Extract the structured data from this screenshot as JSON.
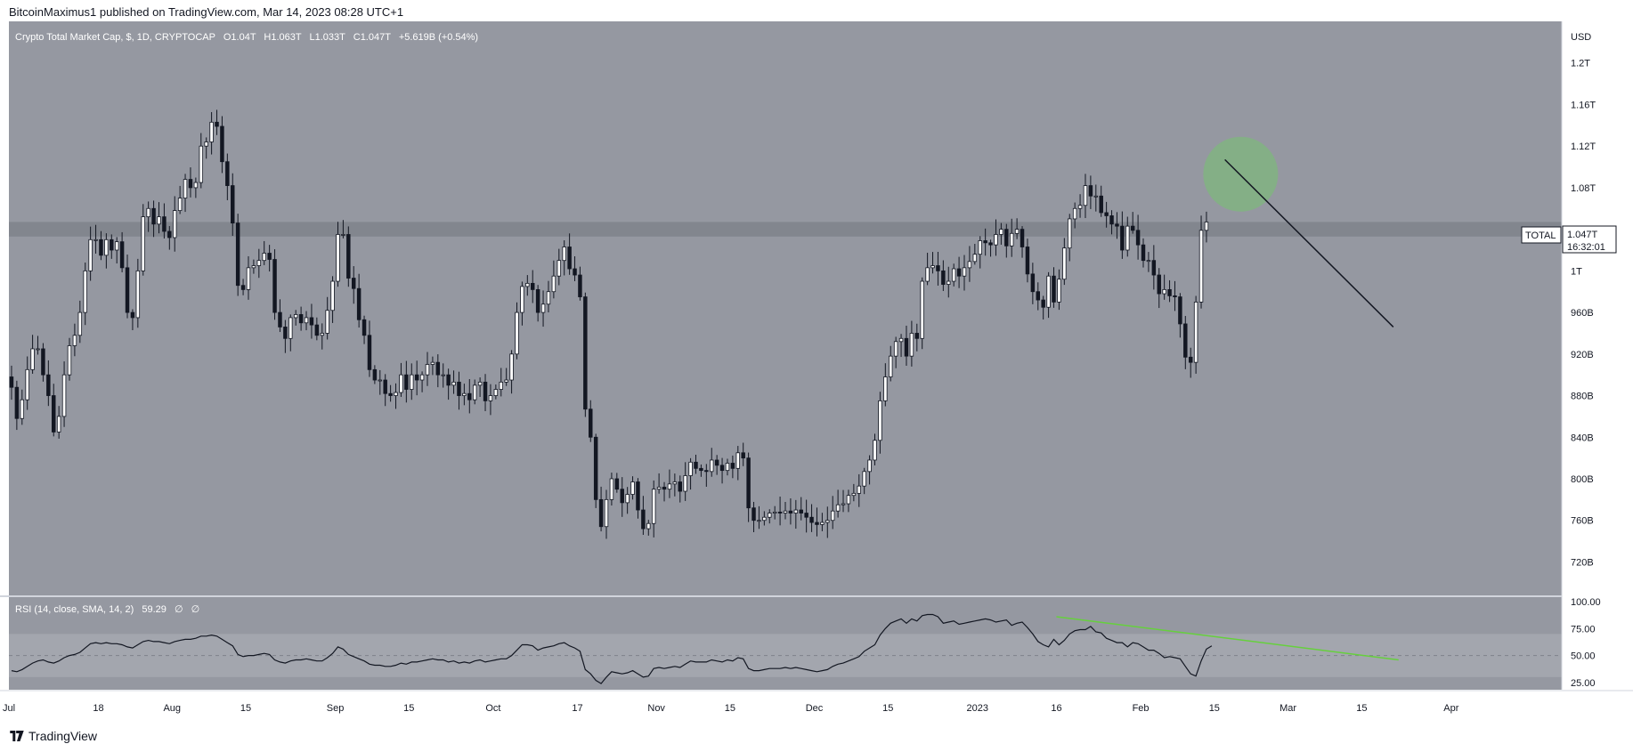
{
  "header": {
    "publisher_line": "BitcoinMaximus1 published on TradingView.com, Mar 14, 2023 08:28 UTC+1"
  },
  "footer": {
    "brand": "TradingView",
    "logo_icon": "tradingview-logo-icon"
  },
  "legend": {
    "symbol": "Crypto Total Market Cap, $, 1D, CRYPTOCAP",
    "o_label": "O",
    "o_value": "1.04T",
    "h_label": "H",
    "h_value": "1.063T",
    "l_label": "L",
    "l_value": "1.033T",
    "c_label": "C",
    "c_value": "1.047T",
    "change": "+5.619B (+0.54%)"
  },
  "price_tag": {
    "name": "TOTAL",
    "value": "1.047T",
    "countdown": "16:32:01"
  },
  "rsi_legend": {
    "label": "RSI (14, close, SMA, 14, 2)",
    "value": "59.29",
    "na1": "∅",
    "na2": "∅"
  },
  "colors": {
    "panel_bg": "#9598a1",
    "band": "#7f828b",
    "rsi_band": "#a3a6ae",
    "up_body": "#ffffff",
    "down_body": "#131722",
    "wick": "#131722",
    "highlight_circle": "#7fb77e",
    "trendline": "#131722",
    "rsi_line": "#131722",
    "rsi_divergence": "#66d03d",
    "axis_text": "#131722"
  },
  "chart_data": {
    "type": "candlestick",
    "title": "Crypto Total Market Cap, $, 1D, CRYPTOCAP",
    "currency": "USD",
    "price_ticks": [
      "1.2T",
      "1.16T",
      "1.12T",
      "1.08T",
      "1T",
      "960B",
      "920B",
      "880B",
      "840B",
      "800B",
      "760B",
      "720B"
    ],
    "price_tick_values": [
      1200,
      1160,
      1120,
      1080,
      1000,
      960,
      920,
      880,
      840,
      800,
      760,
      720
    ],
    "price_unit": "B",
    "ylim": [
      687,
      1240
    ],
    "date_range": [
      "2022-07-01",
      "2023-04-22"
    ],
    "x_labels": [
      {
        "label": "Jul",
        "date": "2022-07-01"
      },
      {
        "label": "18",
        "date": "2022-07-18"
      },
      {
        "label": "Aug",
        "date": "2022-08-01"
      },
      {
        "label": "15",
        "date": "2022-08-15"
      },
      {
        "label": "Sep",
        "date": "2022-09-01"
      },
      {
        "label": "15",
        "date": "2022-09-15"
      },
      {
        "label": "Oct",
        "date": "2022-10-01"
      },
      {
        "label": "17",
        "date": "2022-10-17"
      },
      {
        "label": "Nov",
        "date": "2022-11-01"
      },
      {
        "label": "15",
        "date": "2022-11-15"
      },
      {
        "label": "Dec",
        "date": "2022-12-01"
      },
      {
        "label": "15",
        "date": "2022-12-15"
      },
      {
        "label": "2023",
        "date": "2023-01-01"
      },
      {
        "label": "16",
        "date": "2023-01-16"
      },
      {
        "label": "Feb",
        "date": "2023-02-01"
      },
      {
        "label": "15",
        "date": "2023-02-15"
      },
      {
        "label": "Mar",
        "date": "2023-03-01"
      },
      {
        "label": "15",
        "date": "2023-03-15"
      },
      {
        "label": "Apr",
        "date": "2023-04-01"
      }
    ],
    "first_candle_date": "2022-07-01",
    "closes": [
      888,
      858,
      876,
      905,
      925,
      925,
      900,
      880,
      845,
      860,
      900,
      928,
      938,
      960,
      1000,
      1030,
      1030,
      1015,
      1030,
      1020,
      1028,
      1003,
      960,
      955,
      1000,
      1052,
      1060,
      1045,
      1052,
      1038,
      1032,
      1058,
      1070,
      1088,
      1080,
      1085,
      1120,
      1124,
      1143,
      1139,
      1105,
      1082,
      1046,
      986,
      982,
      1003,
      1005,
      1010,
      1017,
      1011,
      960,
      946,
      935,
      955,
      958,
      950,
      955,
      948,
      938,
      940,
      962,
      990,
      1035,
      1035,
      993,
      983,
      953,
      938,
      905,
      895,
      895,
      882,
      880,
      883,
      900,
      886,
      900,
      895,
      900,
      910,
      912,
      900,
      900,
      890,
      893,
      880,
      882,
      876,
      890,
      893,
      875,
      880,
      886,
      893,
      895,
      920,
      960,
      985,
      988,
      982,
      960,
      968,
      980,
      995,
      1010,
      1023,
      1002,
      996,
      975,
      867,
      840,
      780,
      754,
      780,
      800,
      790,
      777,
      785,
      797,
      770,
      752,
      757,
      790,
      792,
      790,
      795,
      797,
      788,
      803,
      816,
      810,
      808,
      807,
      818,
      813,
      808,
      815,
      810,
      825,
      820,
      772,
      760,
      760,
      763,
      767,
      768,
      767,
      769,
      767,
      770,
      767,
      763,
      758,
      756,
      758,
      760,
      769,
      775,
      776,
      784,
      786,
      793,
      807,
      818,
      837,
      875,
      898,
      918,
      932,
      935,
      918,
      940,
      935,
      990,
      1003,
      1005,
      1000,
      987,
      990,
      1002,
      995,
      1003,
      1009,
      1016,
      1029,
      1027,
      1025,
      1035,
      1040,
      1024,
      1036,
      1040,
      1023,
      997,
      980,
      972,
      965,
      995,
      970,
      992,
      1022,
      1050,
      1060,
      1063,
      1082,
      1072,
      1072,
      1056,
      1053,
      1045,
      1043,
      1020,
      1043,
      1039,
      1025,
      1010,
      1010,
      996,
      978,
      982,
      976,
      975,
      949,
      917,
      912,
      970,
      1039,
      1047
    ],
    "rsi": {
      "label": "RSI (14, close, SMA, 14, 2)",
      "value": 59.29,
      "ticks": [
        100,
        75,
        50,
        25
      ],
      "tick_labels": [
        "100.00",
        "75.00",
        "50.00",
        "25.00"
      ],
      "band": [
        30,
        70
      ],
      "midline": 50,
      "series": [
        36,
        35,
        37,
        40,
        43,
        45,
        46,
        44,
        43,
        45,
        48,
        50,
        51,
        53,
        57,
        61,
        62,
        61,
        62,
        61,
        61,
        60,
        58,
        57,
        60,
        63,
        64,
        63,
        63,
        62,
        61,
        63,
        64,
        65,
        65,
        66,
        68,
        68,
        69,
        68,
        65,
        62,
        59,
        51,
        49,
        50,
        50,
        51,
        52,
        51,
        46,
        44,
        43,
        45,
        46,
        46,
        47,
        46,
        45,
        45,
        48,
        52,
        58,
        56,
        51,
        49,
        47,
        45,
        42,
        41,
        41,
        40,
        40,
        41,
        43,
        42,
        44,
        44,
        45,
        46,
        47,
        46,
        46,
        44,
        45,
        43,
        44,
        43,
        45,
        46,
        44,
        45,
        46,
        47,
        47,
        50,
        55,
        60,
        60,
        59,
        55,
        57,
        58,
        59,
        61,
        62,
        59,
        57,
        54,
        37,
        33,
        27,
        24,
        30,
        35,
        34,
        33,
        34,
        36,
        33,
        30,
        31,
        38,
        39,
        38,
        39,
        40,
        39,
        42,
        45,
        44,
        44,
        44,
        46,
        45,
        44,
        46,
        45,
        48,
        47,
        38,
        36,
        36,
        37,
        38,
        38,
        38,
        39,
        38,
        39,
        38,
        37,
        36,
        35,
        36,
        37,
        40,
        42,
        43,
        45,
        47,
        49,
        54,
        57,
        60,
        69,
        75,
        80,
        82,
        84,
        80,
        84,
        82,
        87,
        88,
        88,
        86,
        80,
        81,
        82,
        79,
        80,
        81,
        82,
        83,
        84,
        83,
        81,
        82,
        83,
        78,
        80,
        81,
        76,
        70,
        63,
        60,
        58,
        65,
        60,
        64,
        70,
        73,
        74,
        74,
        77,
        72,
        71,
        66,
        64,
        62,
        62,
        58,
        62,
        61,
        58,
        55,
        55,
        52,
        48,
        49,
        48,
        47,
        40,
        33,
        31,
        45,
        56,
        59
      ],
      "divergence_line": {
        "start": {
          "date": "2023-01-16",
          "value": 86
        },
        "end": {
          "date": "2023-03-22",
          "value": 46
        }
      }
    },
    "annotations": {
      "resistance_zone": [
        1033,
        1047
      ],
      "highlight_circle": {
        "date": "2023-02-20",
        "value": 1093,
        "note": "local high marked with green circle"
      },
      "descending_trendline": {
        "start": {
          "date": "2023-02-17",
          "value": 1107
        },
        "end": {
          "date": "2023-03-21",
          "value": 946
        }
      }
    },
    "grid": false,
    "legend_position": "top-left"
  }
}
